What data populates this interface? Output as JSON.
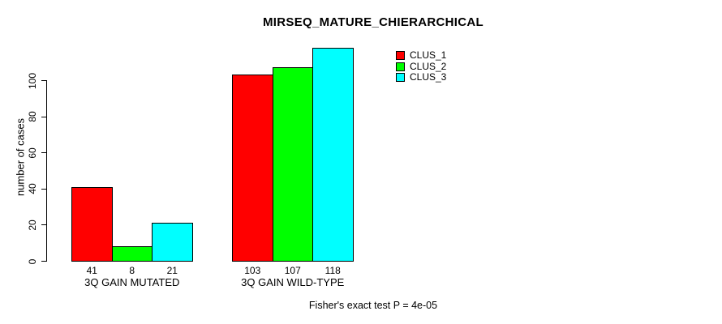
{
  "chart_data": {
    "type": "bar",
    "title": "MIRSEQ_MATURE_CHIERARCHICAL",
    "xlabel": "",
    "ylabel": "number of cases",
    "categories": [
      "3Q GAIN MUTATED",
      "3Q GAIN WILD-TYPE"
    ],
    "series": [
      {
        "name": "CLUS_1",
        "color": "#ff0000",
        "values": [
          41,
          103
        ]
      },
      {
        "name": "CLUS_2",
        "color": "#00ff00",
        "values": [
          8,
          107
        ]
      },
      {
        "name": "CLUS_3",
        "color": "#00ffff",
        "values": [
          21,
          118
        ]
      }
    ],
    "bar_value_labels": [
      [
        41,
        8,
        21
      ],
      [
        103,
        107,
        118
      ]
    ],
    "yticks": [
      0,
      20,
      40,
      60,
      80,
      100
    ],
    "ylim": [
      0,
      120
    ],
    "grid": false,
    "legend_position": "top-right",
    "footnote": "Fisher's exact test P = 4e-05"
  },
  "colors": {
    "background": "#ffffff",
    "axis": "#000000",
    "bar_border": "#000000",
    "text": "#000000"
  }
}
